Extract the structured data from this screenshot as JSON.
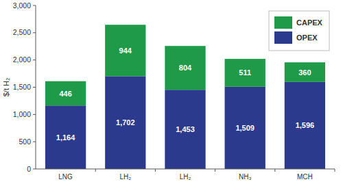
{
  "chart_data": {
    "type": "bar",
    "stacked": true,
    "data_labels": true,
    "grid": false,
    "legend": "upper right",
    "y_label": "$/t H₂",
    "categories": [
      "LNG",
      "LH₂",
      "LH₂",
      "NH₃",
      "MCH"
    ],
    "series": [
      {
        "name": "OPEX",
        "color": "#2b3a8c",
        "values": [
          1164,
          1702,
          1453,
          1509,
          1596
        ],
        "value_labels": [
          "1,164",
          "1,702",
          "1,453",
          "1,509",
          "1,596"
        ]
      },
      {
        "name": "CAPEX",
        "color": "#1f9a48",
        "values": [
          446,
          944,
          804,
          511,
          360
        ]
      }
    ],
    "ylim": [
      0,
      3000
    ],
    "yticks": [
      0,
      500,
      {
        "value": 1000,
        "label": "1,000"
      },
      {
        "value": 1500,
        "label": "1,500"
      },
      {
        "value": 2000,
        "label": "2,000"
      },
      {
        "value": 2500,
        "label": "2,500"
      },
      {
        "value": 3000,
        "label": "3,000"
      }
    ]
  }
}
